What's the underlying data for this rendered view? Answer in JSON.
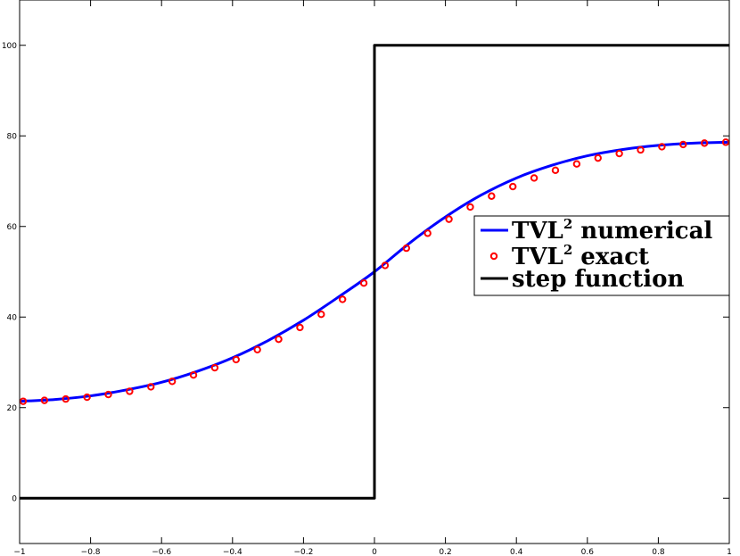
{
  "chart_data": {
    "type": "line",
    "title": "",
    "xlabel": "",
    "ylabel": "",
    "xlim": [
      -1,
      1
    ],
    "ylim": [
      -10,
      110
    ],
    "grid": false,
    "legend_placement": "right",
    "x_ticks": [
      -1,
      -0.8,
      -0.6,
      -0.4,
      -0.2,
      0,
      0.2,
      0.4,
      0.6,
      0.8,
      1
    ],
    "x_tick_labels": [
      "−1",
      "−0.8",
      "−0.6",
      "−0.4",
      "−0.2",
      "0",
      "0.2",
      "0.4",
      "0.6",
      "0.8",
      "1"
    ],
    "y_ticks": [
      0,
      20,
      40,
      60,
      80,
      100
    ],
    "y_tick_labels": [
      "0",
      "20",
      "40",
      "60",
      "80",
      "100"
    ],
    "series": [
      {
        "name": "TVL2 numerical",
        "legend_base": "TVL",
        "legend_sup": "2",
        "legend_rest": " numerical",
        "style": "line",
        "color": "#0000ff",
        "x": [
          -1,
          -0.9,
          -0.8,
          -0.7,
          -0.6,
          -0.5,
          -0.4,
          -0.3,
          -0.2,
          -0.1,
          0,
          0.1,
          0.2,
          0.3,
          0.4,
          0.5,
          0.6,
          0.7,
          0.8,
          0.9,
          1
        ],
        "y": [
          21.4,
          21.8,
          22.6,
          23.9,
          25.6,
          28.0,
          31.0,
          34.8,
          39.3,
          44.5,
          50.0,
          56.4,
          62.1,
          66.9,
          70.7,
          73.5,
          75.6,
          77.0,
          77.9,
          78.4,
          78.6
        ]
      },
      {
        "name": "TVL2 exact",
        "legend_base": "TVL",
        "legend_sup": "2",
        "legend_rest": " exact",
        "style": "markers",
        "marker": "circle",
        "color": "#ff0000",
        "x": [
          -0.99,
          -0.93,
          -0.87,
          -0.81,
          -0.75,
          -0.69,
          -0.63,
          -0.57,
          -0.51,
          -0.45,
          -0.39,
          -0.33,
          -0.27,
          -0.21,
          -0.15,
          -0.09,
          -0.03,
          0.03,
          0.09,
          0.15,
          0.21,
          0.27,
          0.33,
          0.39,
          0.45,
          0.51,
          0.57,
          0.63,
          0.69,
          0.75,
          0.81,
          0.87,
          0.93,
          0.99
        ],
        "y": [
          21.4,
          21.6,
          21.9,
          22.3,
          22.9,
          23.6,
          24.6,
          25.8,
          27.2,
          28.8,
          30.6,
          32.8,
          35.1,
          37.7,
          40.6,
          43.9,
          47.5,
          51.4,
          55.2,
          58.5,
          61.6,
          64.3,
          66.7,
          68.8,
          70.7,
          72.4,
          73.8,
          75.1,
          76.1,
          76.9,
          77.6,
          78.1,
          78.4,
          78.6
        ]
      },
      {
        "name": "step function",
        "legend_base": "step function",
        "legend_sup": "",
        "legend_rest": "",
        "style": "line",
        "color": "#000000",
        "x": [
          -1,
          0,
          0,
          1
        ],
        "y": [
          0,
          0,
          100,
          100
        ]
      }
    ]
  }
}
